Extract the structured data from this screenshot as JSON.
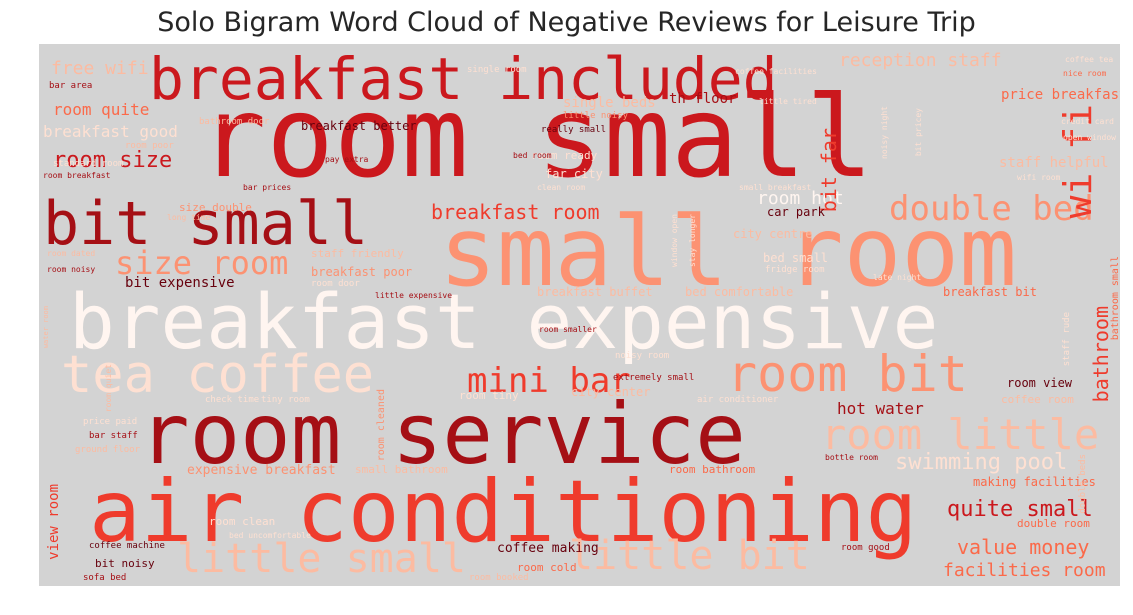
{
  "title": "Solo Bigram Word Cloud of Negative Reviews for Leisure Trip",
  "colors": {
    "background": "#d3d3d3",
    "darkest": "#a50f15",
    "dark": "#cb181d",
    "medium": "#ef3b2c",
    "light": "#fb6a4a",
    "lighter": "#fc9272",
    "lightest": "#fcbba1",
    "palest": "#fee0d2",
    "white": "#fff5f0"
  },
  "words": [
    {
      "text": "room small"
    },
    {
      "text": "small room"
    },
    {
      "text": "breakfast expensive"
    },
    {
      "text": "air conditioning"
    },
    {
      "text": "room service"
    },
    {
      "text": "breakfast included"
    },
    {
      "text": "bit small"
    },
    {
      "text": "tea coffee"
    },
    {
      "text": "room bit"
    },
    {
      "text": "room little"
    },
    {
      "text": "little small"
    },
    {
      "text": "little bit"
    },
    {
      "text": "double bed"
    },
    {
      "text": "mini bar"
    },
    {
      "text": "size room"
    },
    {
      "text": "wi fi"
    },
    {
      "text": "room size"
    },
    {
      "text": "breakfast room"
    },
    {
      "text": "swimming pool"
    },
    {
      "text": "quite small"
    },
    {
      "text": "value money"
    },
    {
      "text": "facilities room"
    },
    {
      "text": "reception staff"
    },
    {
      "text": "free wifi"
    },
    {
      "text": "breakfast good"
    },
    {
      "text": "room quite"
    },
    {
      "text": "room hot"
    },
    {
      "text": "hot water"
    },
    {
      "text": "bathroom"
    },
    {
      "text": "price breakfast"
    },
    {
      "text": "bit far"
    },
    {
      "text": "bit expensive"
    },
    {
      "text": "coffee making"
    },
    {
      "text": "view room"
    },
    {
      "text": "making facilities"
    },
    {
      "text": "expensive breakfast"
    },
    {
      "text": "single beds"
    },
    {
      "text": "breakfast better"
    },
    {
      "text": "far city"
    },
    {
      "text": "breakfast poor"
    },
    {
      "text": "car park"
    },
    {
      "text": "city centre"
    },
    {
      "text": "bed small"
    },
    {
      "text": "breakfast buffet"
    },
    {
      "text": "bed comfortable"
    },
    {
      "text": "breakfast bit"
    },
    {
      "text": "room view"
    },
    {
      "text": "coffee room"
    },
    {
      "text": "double room"
    },
    {
      "text": "room cleaned"
    },
    {
      "text": "small bathroom"
    },
    {
      "text": "room bathroom"
    },
    {
      "text": "room clean"
    },
    {
      "text": "room cold"
    },
    {
      "text": "room ready"
    },
    {
      "text": "really small"
    },
    {
      "text": "little noisy"
    },
    {
      "text": "bit noisy"
    },
    {
      "text": "coffee machine"
    },
    {
      "text": "bar staff"
    },
    {
      "text": "ground floor"
    },
    {
      "text": "price paid"
    },
    {
      "text": "standard room"
    },
    {
      "text": "room poor"
    },
    {
      "text": "bed room"
    },
    {
      "text": "single room"
    },
    {
      "text": "bar area"
    },
    {
      "text": "room door"
    },
    {
      "text": "room good"
    },
    {
      "text": "sofa bed"
    },
    {
      "text": "fridge room"
    },
    {
      "text": "little expensive"
    },
    {
      "text": "staff friendly"
    },
    {
      "text": "room tiny"
    },
    {
      "text": "noisy room"
    },
    {
      "text": "air conditioner"
    },
    {
      "text": "check time"
    },
    {
      "text": "tiny room"
    },
    {
      "text": "city center"
    },
    {
      "text": "extremely small"
    },
    {
      "text": "staff rude"
    },
    {
      "text": "wifi room"
    },
    {
      "text": "open window"
    },
    {
      "text": "credit card"
    },
    {
      "text": "coffee tea"
    },
    {
      "text": "coffee facilities"
    },
    {
      "text": "little tired"
    },
    {
      "text": "bit pricey"
    },
    {
      "text": "noisy night"
    },
    {
      "text": "bottle room"
    },
    {
      "text": "late night"
    },
    {
      "text": "long time"
    },
    {
      "text": "room breakfast"
    },
    {
      "text": "room noisy"
    },
    {
      "text": "bar prices"
    },
    {
      "text": "pay extra"
    },
    {
      "text": "staff helpful"
    },
    {
      "text": "th floor"
    },
    {
      "text": "bathroom door"
    },
    {
      "text": "clean room"
    },
    {
      "text": "room smaller"
    },
    {
      "text": "window open"
    },
    {
      "text": "stay longer"
    },
    {
      "text": "size double"
    },
    {
      "text": "room dated"
    },
    {
      "text": "bathroom small"
    },
    {
      "text": "bed uncomfortable"
    },
    {
      "text": "room booked"
    },
    {
      "text": "double beds"
    },
    {
      "text": "small breakfast"
    },
    {
      "text": "room quiet"
    },
    {
      "text": "water room"
    },
    {
      "text": "nice room"
    }
  ]
}
